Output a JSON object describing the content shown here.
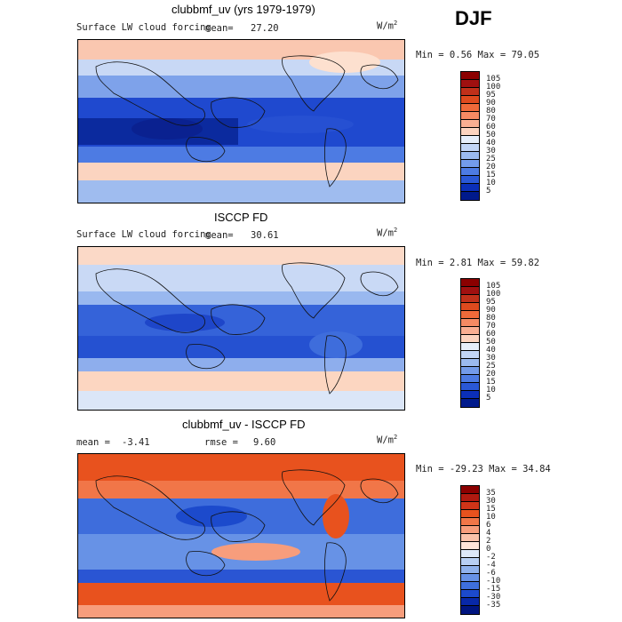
{
  "season": "DJF",
  "panels": [
    {
      "title": "clubbmf_uv (yrs 1979-1979)",
      "variable": "Surface LW cloud forcing",
      "mean_label": "mean=",
      "mean_value": "27.20",
      "units": "W/m",
      "units_sup": "2",
      "min_max": "Min =   0.56 Max =  79.05",
      "colorbar": {
        "levels": [
          "105",
          "100",
          "95",
          "90",
          "80",
          "70",
          "60",
          "50",
          "40",
          "30",
          "25",
          "20",
          "15",
          "10",
          "5"
        ],
        "colors": [
          "#8b0000",
          "#a01010",
          "#c0301a",
          "#de4a1e",
          "#ef6a3a",
          "#f58a63",
          "#f9ae92",
          "#fcd3bf",
          "#e6eefa",
          "#c2d5f6",
          "#9bbaf0",
          "#739bea",
          "#4d7be3",
          "#2a58d6",
          "#0b2fb8",
          "#001a8c"
        ]
      }
    },
    {
      "title": "ISCCP FD",
      "variable": "Surface LW cloud forcing",
      "mean_label": "mean=",
      "mean_value": "30.61",
      "units": "W/m",
      "units_sup": "2",
      "min_max": "Min =   2.81 Max =  59.82",
      "colorbar": {
        "levels": [
          "105",
          "100",
          "95",
          "90",
          "80",
          "70",
          "60",
          "50",
          "40",
          "30",
          "25",
          "20",
          "15",
          "10",
          "5"
        ],
        "colors": [
          "#8b0000",
          "#a01010",
          "#c0301a",
          "#de4a1e",
          "#ef6a3a",
          "#f58a63",
          "#f9ae92",
          "#fcd3bf",
          "#e6eefa",
          "#c2d5f6",
          "#9bbaf0",
          "#739bea",
          "#4d7be3",
          "#2a58d6",
          "#0b2fb8",
          "#001a8c"
        ]
      }
    },
    {
      "title": "clubbmf_uv - ISCCP FD",
      "mean_label": "mean =",
      "mean_value": "-3.41",
      "rmse_label": "rmse =",
      "rmse_value": "9.60",
      "units": "W/m",
      "units_sup": "2",
      "min_max": "Min = -29.23 Max =  34.84",
      "colorbar": {
        "levels": [
          "35",
          "30",
          "15",
          "10",
          "6",
          "4",
          "2",
          "0",
          "-2",
          "-4",
          "-6",
          "-10",
          "-15",
          "-30",
          "-35"
        ],
        "colors": [
          "#8b0000",
          "#b01a10",
          "#cf3418",
          "#e8521e",
          "#f17648",
          "#f79d7c",
          "#fac2aa",
          "#fde4d8",
          "#dde8f8",
          "#b8cff3",
          "#90b2ec",
          "#6792e6",
          "#3e6fdd",
          "#1c4acc",
          "#0828a8",
          "#001580"
        ]
      }
    }
  ]
}
